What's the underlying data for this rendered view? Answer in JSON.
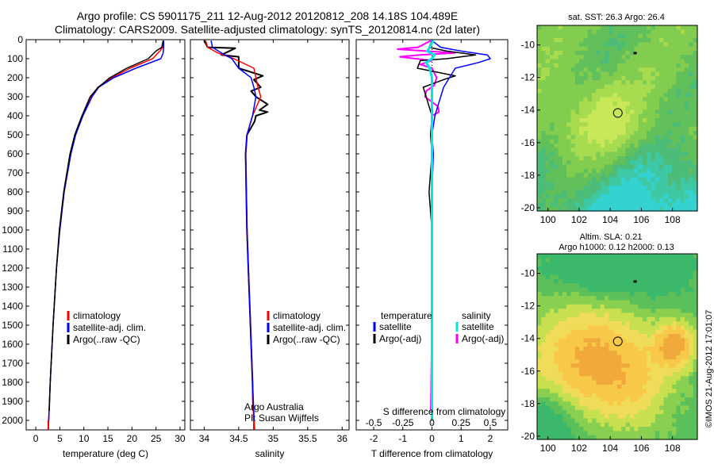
{
  "header": {
    "title_line1": "Argo profile: CS 5901175_211 12-Aug-2012 20120812_208 14.18S 104.489E",
    "title_line2": "Climatology: CARS2009. Satellite-adjusted climatology: synTS_20120814.nc (2d later)"
  },
  "colors": {
    "climatology": "#ff0000",
    "satellite": "#0000ff",
    "argo": "#000000",
    "sal_satellite": "#00e5e5",
    "sal_argo": "#ff00ff"
  },
  "depth_axis": {
    "range": [
      0,
      2050
    ],
    "ticks": [
      0,
      100,
      200,
      300,
      400,
      500,
      600,
      700,
      800,
      900,
      1000,
      1100,
      1200,
      1300,
      1400,
      1500,
      1600,
      1700,
      1800,
      1900,
      2000
    ]
  },
  "chart_data": [
    {
      "type": "line",
      "id": "temperature",
      "xlabel": "temperature (deg C)",
      "xlim": [
        -2,
        31
      ],
      "xticks": [
        0,
        5,
        10,
        15,
        20,
        25,
        30
      ],
      "ylim": [
        0,
        2050
      ],
      "legend": [
        "climatology",
        "satellite-adj. clim.",
        "Argo(..raw -QC)"
      ],
      "series": [
        {
          "name": "climatology",
          "depth": [
            5,
            40,
            60,
            100,
            150,
            200,
            250,
            300,
            400,
            500,
            600,
            800,
            1000,
            1200,
            1500,
            1800,
            2050
          ],
          "values": [
            26.6,
            26.4,
            25.8,
            24.3,
            19.6,
            15.8,
            12.9,
            11.5,
            9.7,
            8.2,
            7.2,
            5.9,
            5.0,
            4.3,
            3.6,
            3.0,
            2.6
          ]
        },
        {
          "name": "satellite-adj. clim.",
          "depth": [
            5,
            40,
            70,
            100,
            150,
            200,
            250,
            300,
            400,
            500,
            600,
            800,
            1000,
            1200,
            1500,
            1800,
            2050
          ],
          "values": [
            26.6,
            26.6,
            26.5,
            26.0,
            20.8,
            16.2,
            13.1,
            11.7,
            9.8,
            8.3,
            7.3,
            5.9,
            5.0,
            4.3,
            3.6,
            3.0,
            2.6
          ]
        },
        {
          "name": "Argo(..raw -QC)",
          "depth": [
            5,
            40,
            60,
            100,
            150,
            200,
            250,
            300,
            400,
            500,
            600,
            800,
            1000,
            1200,
            1500,
            1800,
            1950
          ],
          "values": [
            26.5,
            26.2,
            25.0,
            23.4,
            18.9,
            15.4,
            13.0,
            11.3,
            9.6,
            8.1,
            7.1,
            5.8,
            4.9,
            4.3,
            3.6,
            3.0,
            2.8
          ]
        }
      ]
    },
    {
      "type": "line",
      "id": "salinity",
      "xlabel": "salinity",
      "xlim": [
        33.8,
        36.1
      ],
      "xticks": [
        34,
        34.5,
        35,
        35.5,
        36
      ],
      "ylim": [
        0,
        2050
      ],
      "legend": [
        "climatology",
        "satellite-adj. clim.",
        "Argo(..raw -QC)"
      ],
      "series": [
        {
          "name": "climatology",
          "depth": [
            5,
            40,
            70,
            100,
            150,
            200,
            250,
            300,
            400,
            500,
            600,
            800,
            1000,
            1200,
            1500,
            1800,
            2050
          ],
          "values": [
            34.02,
            34.05,
            34.2,
            34.43,
            34.72,
            34.75,
            34.78,
            34.82,
            34.7,
            34.62,
            34.6,
            34.61,
            34.62,
            34.64,
            34.67,
            34.7,
            34.72
          ]
        },
        {
          "name": "satellite-adj. clim.",
          "depth": [
            5,
            40,
            70,
            100,
            150,
            200,
            250,
            300,
            400,
            500,
            600,
            800,
            1000,
            1200,
            1500,
            1800,
            2050
          ],
          "values": [
            34.1,
            34.12,
            34.25,
            34.4,
            34.5,
            34.68,
            34.72,
            34.75,
            34.7,
            34.62,
            34.6,
            34.61,
            34.62,
            34.64,
            34.67,
            34.7,
            34.73
          ]
        },
        {
          "name": "Argo(..raw -QC)",
          "depth": [
            5,
            40,
            45,
            80,
            90,
            110,
            150,
            190,
            210,
            250,
            270,
            300,
            340,
            370,
            380,
            400,
            430,
            500,
            600,
            800,
            1000,
            1200,
            1500,
            1800,
            1950
          ],
          "values": [
            34.0,
            34.05,
            34.45,
            34.25,
            34.5,
            34.5,
            34.5,
            34.85,
            34.72,
            34.82,
            34.68,
            34.75,
            34.92,
            34.8,
            34.92,
            34.75,
            34.73,
            34.62,
            34.6,
            34.61,
            34.62,
            34.64,
            34.67,
            34.7,
            34.71
          ]
        }
      ]
    },
    {
      "type": "line",
      "id": "difference",
      "xlabel": "T difference from climatology",
      "xlabel_top": "S difference from climatology",
      "xlim": [
        -2.6,
        2.6
      ],
      "xticks": [
        -2,
        -1,
        0,
        1,
        2
      ],
      "sticks": [
        "-0.5",
        "-0.25",
        "0",
        "0.25",
        "0.5"
      ],
      "ylim": [
        0,
        2050
      ],
      "legend_titles": {
        "temperature": "temperature",
        "salinity": "salinity"
      },
      "legend": [
        "satellite",
        "Argo(-adj)",
        "satellite",
        "Argo(-adj)"
      ],
      "series": [
        {
          "name": "T satellite",
          "depth": [
            5,
            40,
            60,
            80,
            100,
            120,
            150,
            200,
            250,
            300,
            350,
            400,
            500,
            600,
            800,
            1000,
            1500,
            2000
          ],
          "values": [
            0.0,
            0.3,
            1.0,
            1.9,
            2.0,
            1.6,
            0.8,
            0.6,
            0.4,
            0.3,
            0.2,
            0.1,
            0.0,
            0.05,
            0.0,
            0.0,
            0.0,
            0.0
          ]
        },
        {
          "name": "T Argo(-adj)",
          "depth": [
            5,
            40,
            60,
            80,
            100,
            110,
            150,
            190,
            210,
            250,
            300,
            350,
            400,
            500,
            600,
            800,
            1000,
            1500,
            1950
          ],
          "values": [
            0.0,
            -0.1,
            0.5,
            1.5,
            0.5,
            -0.4,
            -0.5,
            0.8,
            0.4,
            -0.3,
            -0.2,
            -0.1,
            0.0,
            -0.05,
            0.0,
            -0.1,
            0.0,
            0.0,
            0.0
          ]
        },
        {
          "name": "S satellite",
          "depth": [
            5,
            40,
            60,
            80,
            100,
            120,
            150,
            200,
            300,
            400,
            500,
            700,
            1000,
            1500,
            2000
          ],
          "values": [
            0.01,
            -0.02,
            -0.04,
            0.02,
            0.0,
            -0.05,
            -0.02,
            0.0,
            0.0,
            0.0,
            0.0,
            0.0,
            0.0,
            0.0,
            0.0
          ]
        },
        {
          "name": "S Argo(-adj)",
          "depth": [
            5,
            40,
            50,
            70,
            80,
            90,
            110,
            130,
            150,
            200,
            240,
            270,
            300,
            350,
            380,
            400,
            430,
            500,
            600,
            800,
            1000,
            1500,
            1950
          ],
          "values": [
            -0.01,
            -0.12,
            -0.3,
            0.2,
            -0.1,
            -0.28,
            0.0,
            -0.1,
            0.0,
            0.04,
            0.02,
            -0.05,
            -0.06,
            0.05,
            0.06,
            0.0,
            0.0,
            0.0,
            0.0,
            0.0,
            0.0,
            0.0,
            -0.01
          ]
        }
      ]
    },
    {
      "type": "heatmap",
      "id": "sst_map",
      "title": "sat. SST: 26.3 Argo: 26.4",
      "xlim": [
        99.3,
        109.6
      ],
      "ylim": [
        -20.2,
        -8.8
      ],
      "xticks": [
        100,
        102,
        104,
        106,
        108
      ],
      "yticks": [
        -10,
        -12,
        -14,
        -16,
        -18,
        -20
      ],
      "argo_position": {
        "lon": 104.489,
        "lat": -14.18
      },
      "marker_position": {
        "lon": 105.6,
        "lat": -10.5
      }
    },
    {
      "type": "heatmap",
      "id": "sla_map",
      "title_line1": "Altim. SLA: 0.21",
      "title_line2": "Argo h1000: 0.12 h2000: 0.13",
      "xlim": [
        99.3,
        109.6
      ],
      "ylim": [
        -20.2,
        -8.8
      ],
      "xticks": [
        100,
        102,
        104,
        106,
        108
      ],
      "yticks": [
        -10,
        -12,
        -14,
        -16,
        -18,
        -20
      ],
      "argo_position": {
        "lon": 104.489,
        "lat": -14.18
      },
      "marker_position": {
        "lon": 105.6,
        "lat": -10.5
      }
    }
  ],
  "annotations": {
    "argo_line1": "Argo Australia",
    "argo_line2": "PI: Susan Wijffels",
    "imos_stamp": "©IMOS 21-Aug-2012 17:01:07"
  }
}
